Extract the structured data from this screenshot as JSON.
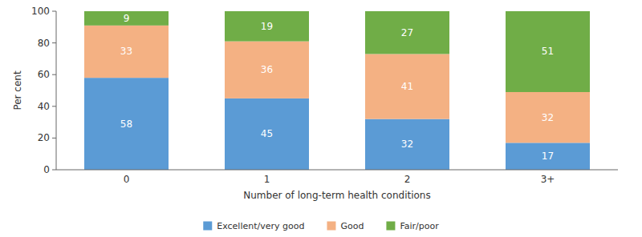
{
  "chart_data": {
    "type": "bar",
    "stacked": true,
    "categories": [
      "0",
      "1",
      "2",
      "3+"
    ],
    "series": [
      {
        "name": "Excellent/very good",
        "color": "#5B9BD5",
        "values": [
          58,
          45,
          32,
          17
        ]
      },
      {
        "name": "Good",
        "color": "#F4B183",
        "values": [
          33,
          36,
          41,
          32
        ]
      },
      {
        "name": "Fair/poor",
        "color": "#70AD47",
        "values": [
          9,
          19,
          27,
          51
        ]
      }
    ],
    "xlabel": "Number of long-term health conditions",
    "ylabel": "Per cent",
    "ylim": [
      0,
      100
    ],
    "yticks": [
      0,
      20,
      40,
      60,
      80,
      100
    ],
    "data_labels": true,
    "grid": false,
    "legend": "bottom"
  }
}
